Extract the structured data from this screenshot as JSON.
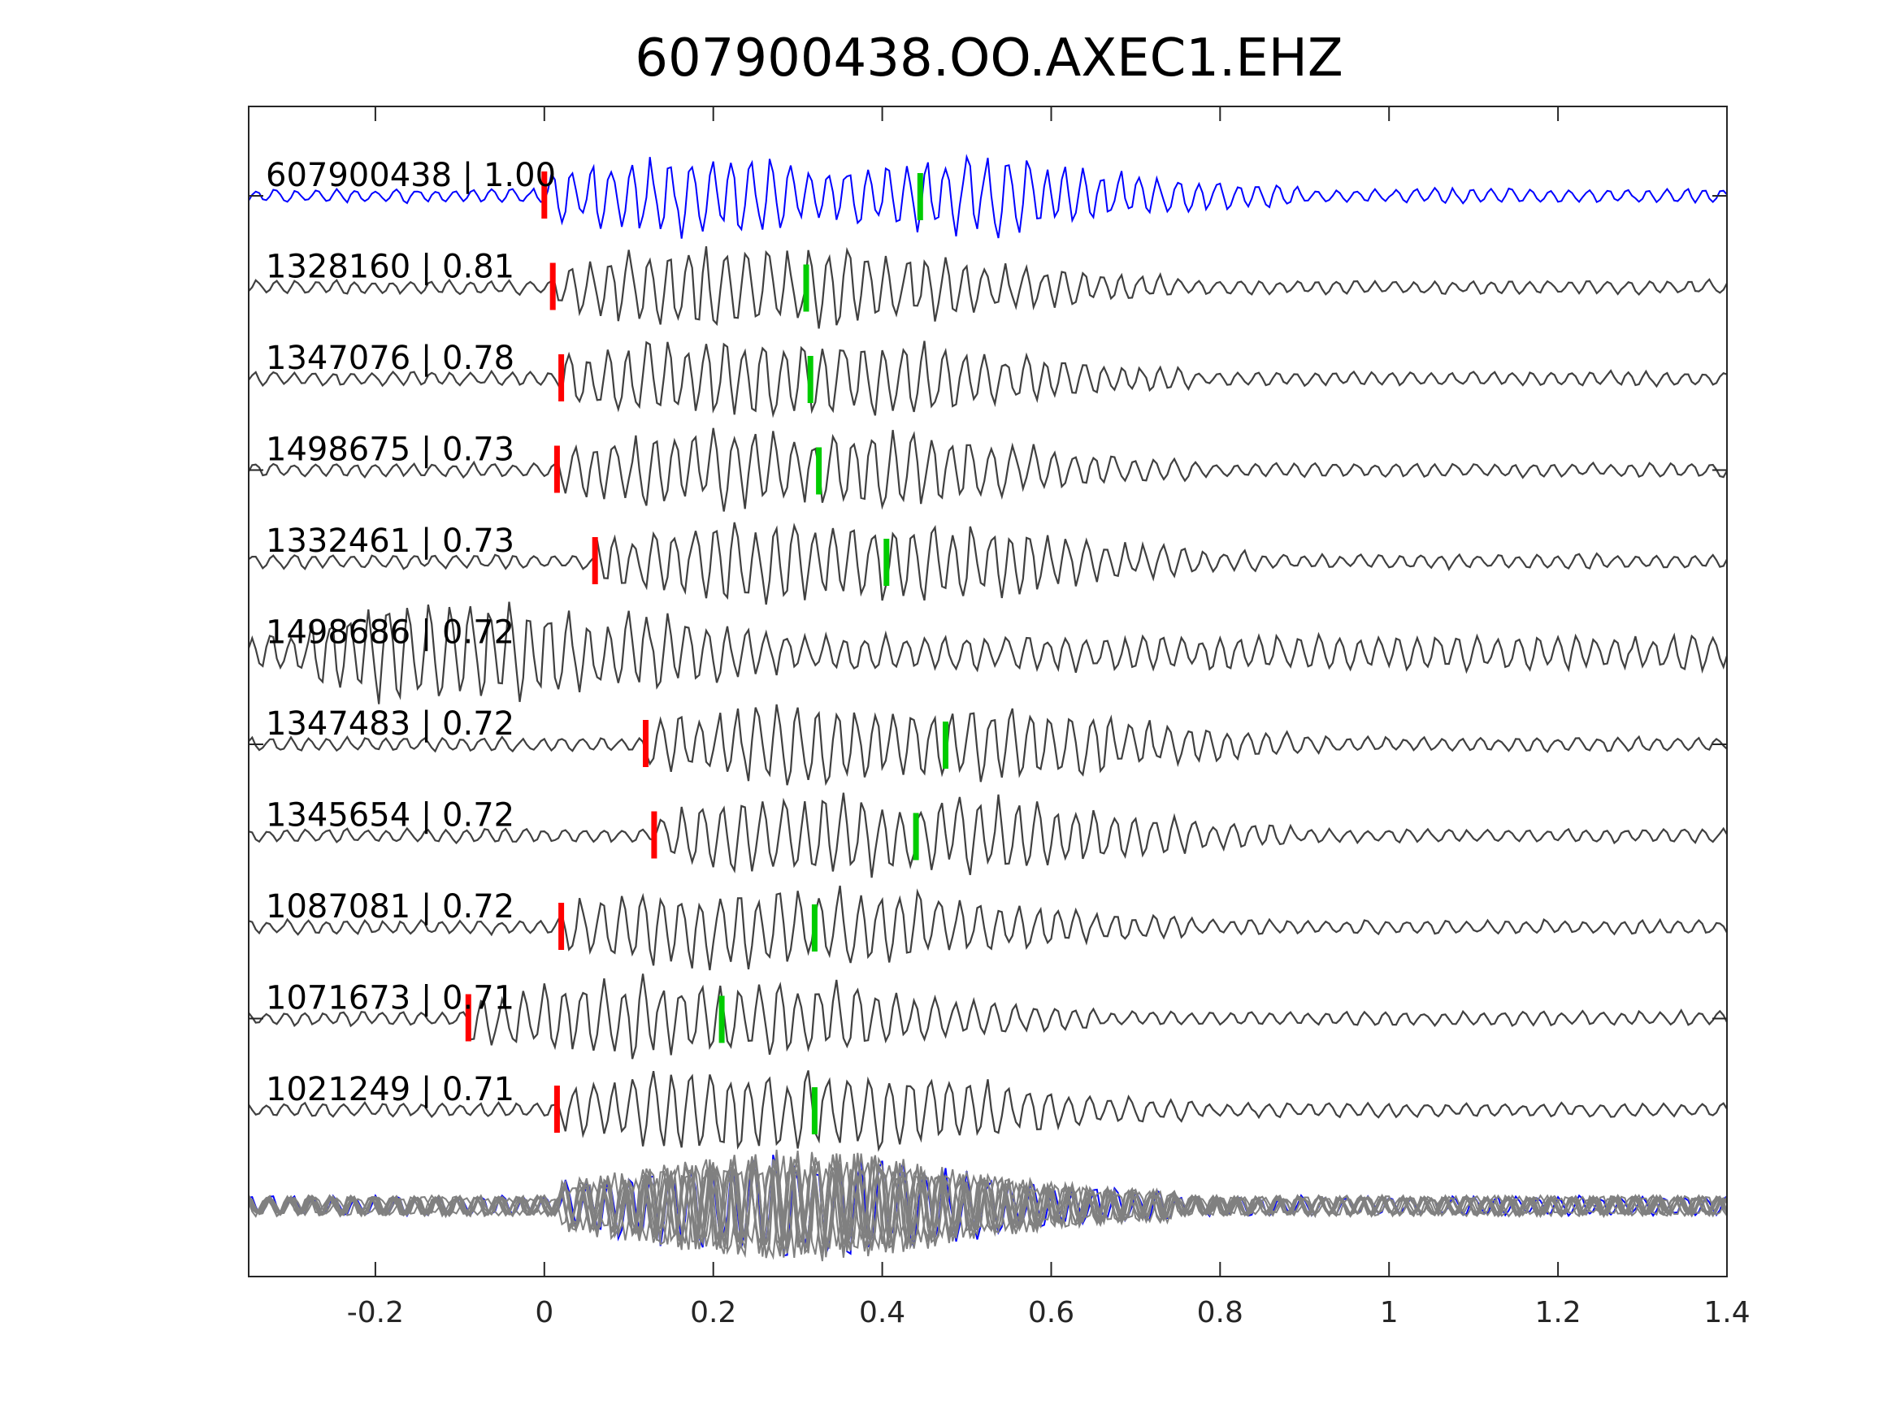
{
  "chart_data": {
    "type": "line",
    "title": "607900438.OO.AXEC1.EHZ",
    "xlabel": "",
    "ylabel": "",
    "xlim": [
      -0.35,
      1.4
    ],
    "x_ticks": [
      -0.2,
      0,
      0.2,
      0.4,
      0.6,
      0.8,
      1,
      1.2,
      1.4
    ],
    "x_tick_labels": [
      "-0.2",
      "0",
      "0.2",
      "0.4",
      "0.6",
      "0.8",
      "1",
      "1.2",
      "1.4"
    ],
    "grid": false,
    "legend": "none",
    "marker_colors": {
      "p_pick": "#ff0000",
      "s_pick": "#00cc00"
    },
    "colors": {
      "master_trace": "#0000ff",
      "trace": "#404040",
      "stack_trace": "#808080",
      "axes": "#262626"
    },
    "series": [
      {
        "label": "607900438 | 1.00",
        "p_pick": 0.0,
        "s_pick": 0.445,
        "color": "master"
      },
      {
        "label": "1328160 | 0.81",
        "p_pick": 0.01,
        "s_pick": 0.31
      },
      {
        "label": "1347076 | 0.78",
        "p_pick": 0.02,
        "s_pick": 0.315
      },
      {
        "label": "1498675 | 0.73",
        "p_pick": 0.015,
        "s_pick": 0.325
      },
      {
        "label": "1332461 | 0.73",
        "p_pick": 0.06,
        "s_pick": 0.405
      },
      {
        "label": "1498686 | 0.72",
        "p_pick": null,
        "s_pick": null
      },
      {
        "label": "1347483 | 0.72",
        "p_pick": 0.12,
        "s_pick": 0.475
      },
      {
        "label": "1345654 | 0.72",
        "p_pick": 0.13,
        "s_pick": 0.44
      },
      {
        "label": "1087081 | 0.72",
        "p_pick": 0.02,
        "s_pick": 0.32
      },
      {
        "label": "1071673 | 0.71",
        "p_pick": -0.09,
        "s_pick": 0.21
      },
      {
        "label": "1021249 | 0.71",
        "p_pick": 0.015,
        "s_pick": 0.32
      }
    ],
    "stack": {
      "description_label": "",
      "overlay_count": 11
    }
  }
}
